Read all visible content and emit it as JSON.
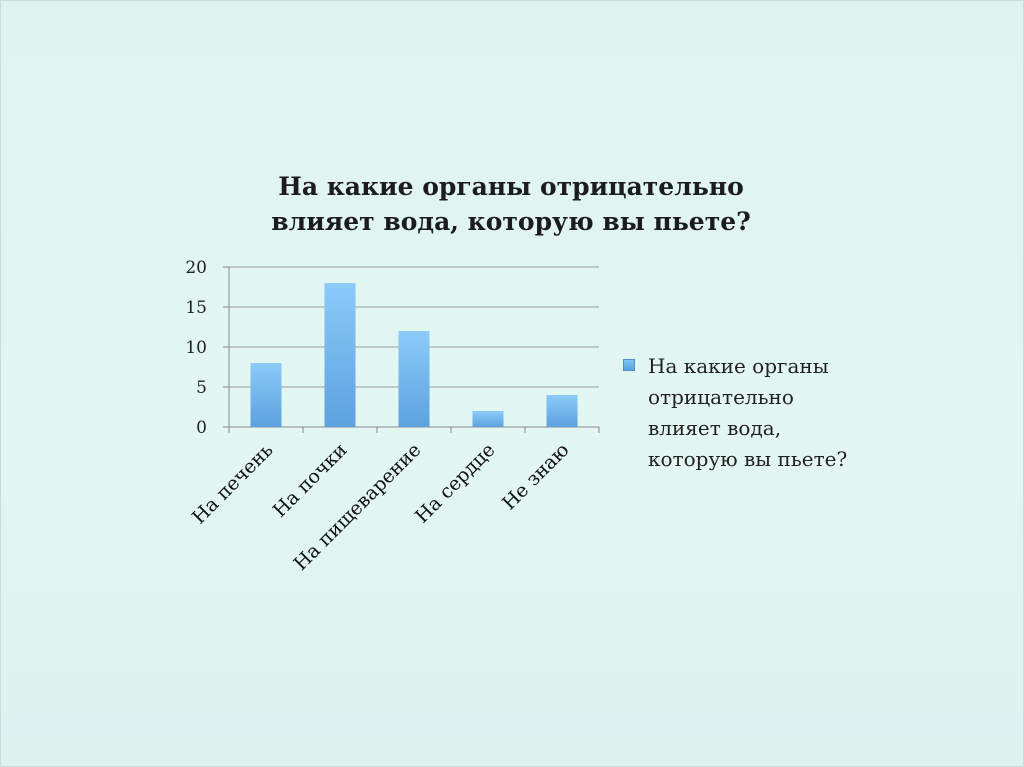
{
  "chart_data": {
    "type": "bar",
    "title_lines": [
      "На какие органы отрицательно",
      "влияет вода, которую вы пьете?"
    ],
    "categories": [
      "На печень",
      "На почки",
      "На пищеварение",
      "На сердце",
      "Не знаю"
    ],
    "series": [
      {
        "name": "На какие органы отрицательно влияет вода, которую вы пьете?",
        "values": [
          8,
          18,
          12,
          2,
          4
        ]
      }
    ],
    "yticks": [
      "0",
      "5",
      "10",
      "15",
      "20"
    ],
    "ylim": [
      0,
      20
    ],
    "grid": true,
    "legend_position": "right",
    "bar_color": "#6fb4ee"
  },
  "legend": {
    "label": "На какие органы отрицательно влияет вода, которую вы пьете?"
  }
}
